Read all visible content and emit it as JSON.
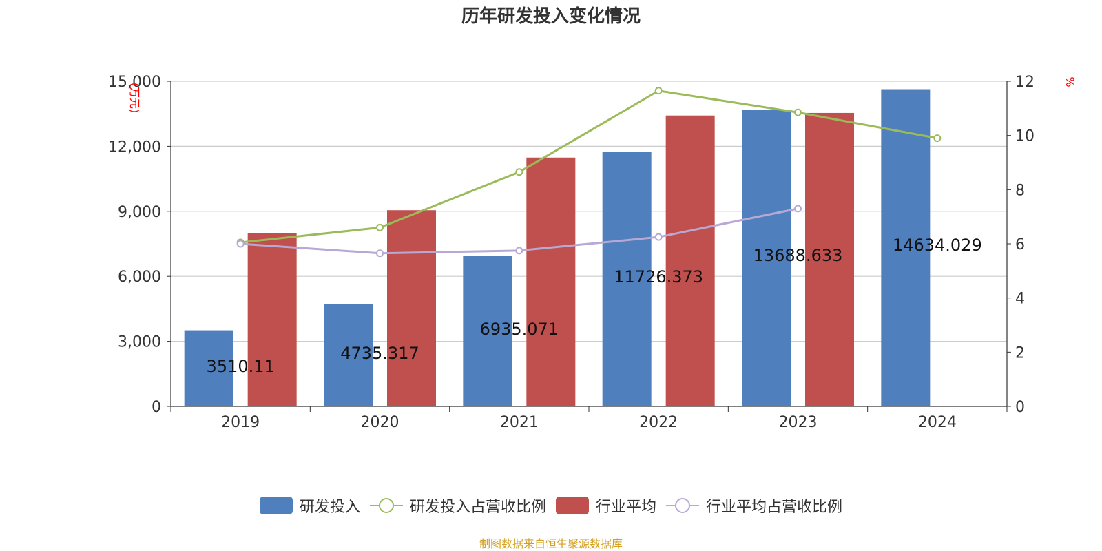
{
  "chart_data": {
    "type": "bar",
    "title": "历年研发投入变化情况",
    "categories": [
      "2019",
      "2020",
      "2021",
      "2022",
      "2023",
      "2024"
    ],
    "y_left": {
      "unit_label": "万元",
      "ticks": [
        "0",
        "3,000",
        "6,000",
        "9,000",
        "12,000",
        "15,000"
      ],
      "ylim": [
        0,
        15000
      ]
    },
    "y_right": {
      "unit_label": "%",
      "ticks": [
        "0",
        "2",
        "4",
        "6",
        "8",
        "10",
        "12"
      ],
      "ylim": [
        0,
        12
      ]
    },
    "grid": true,
    "legend_position": "bottom",
    "series": [
      {
        "name": "研发投入",
        "kind": "bar",
        "axis": "left",
        "color": "#4f7fbd",
        "values": [
          3510.11,
          4735.317,
          6935.071,
          11726.373,
          13688.633,
          14634.029
        ],
        "labels": [
          "3510.11",
          "4735.317",
          "6935.071",
          "11726.373",
          "13688.633",
          "14634.029"
        ]
      },
      {
        "name": "研发投入占营收比例",
        "kind": "line",
        "axis": "right",
        "color": "#9bbb59",
        "values": [
          6.05,
          6.6,
          8.65,
          11.65,
          10.85,
          9.9
        ]
      },
      {
        "name": "行业平均",
        "kind": "bar",
        "axis": "left",
        "color": "#c0504d",
        "values": [
          8000,
          9050,
          11480,
          13420,
          13540,
          null
        ]
      },
      {
        "name": "行业平均占营收比例",
        "kind": "line",
        "axis": "right",
        "color": "#b7a8d4",
        "values": [
          6.0,
          5.65,
          5.75,
          6.25,
          7.3,
          null
        ]
      }
    ]
  },
  "footer": {
    "source": "制图数据来自恒生聚源数据库"
  }
}
